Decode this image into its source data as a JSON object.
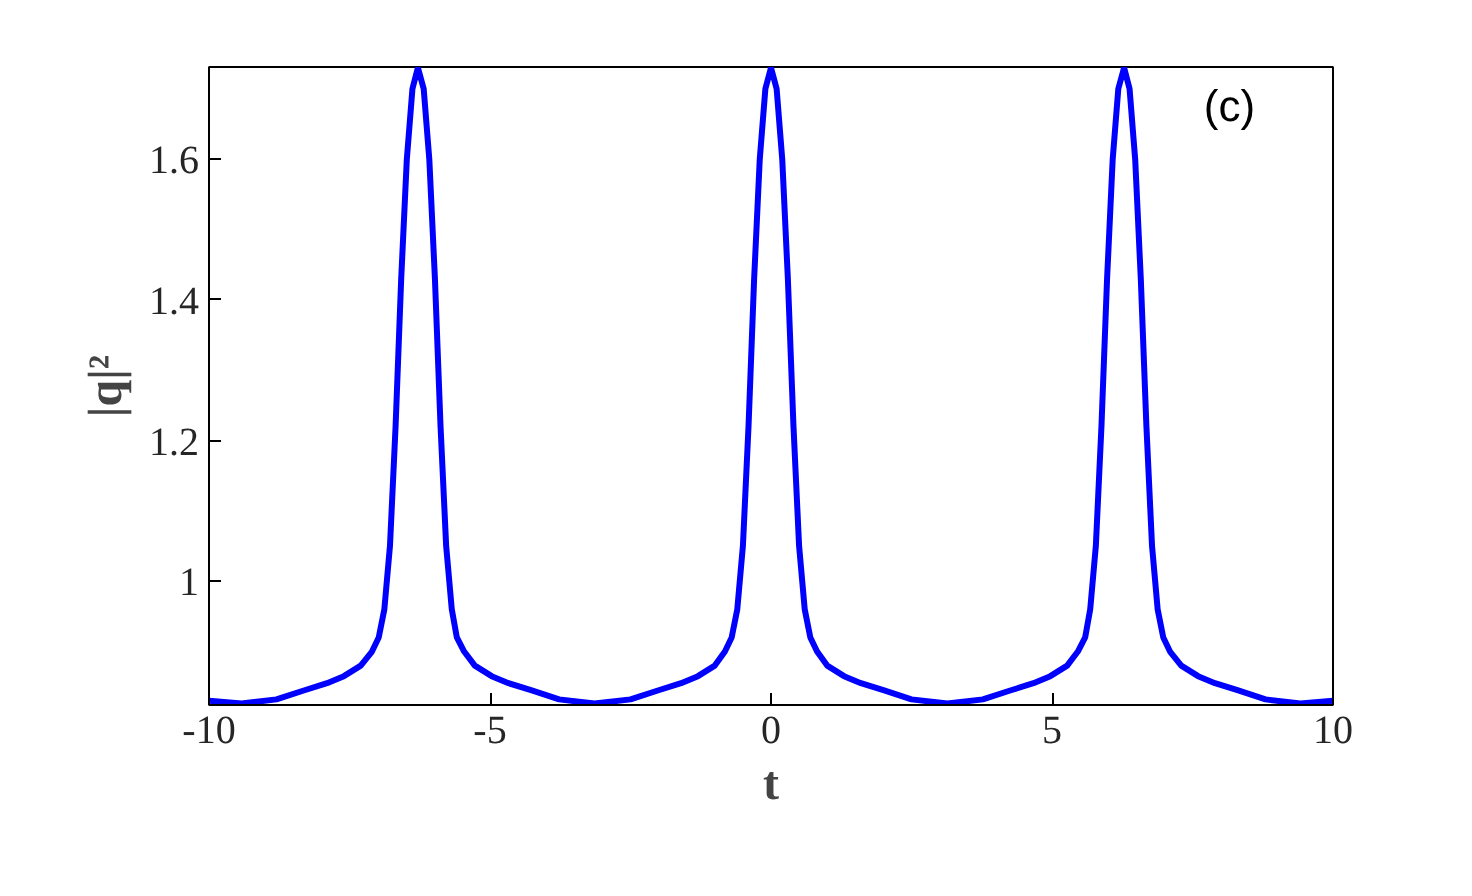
{
  "chart_data": {
    "type": "line",
    "xlabel": "t",
    "ylabel": "|q|²",
    "annotations": [
      "(c)"
    ],
    "x": [
      -10,
      -9.42,
      -8.8,
      -8.3,
      -7.9,
      -7.6,
      -7.3,
      -7.1,
      -6.98,
      -6.88,
      -6.78,
      -6.68,
      -6.58,
      -6.48,
      -6.38,
      -6.283,
      -6.18,
      -6.08,
      -5.98,
      -5.88,
      -5.78,
      -5.68,
      -5.59,
      -5.46,
      -5.27,
      -4.97,
      -4.67,
      -4.27,
      -3.77,
      -3.14,
      -2.5,
      -2.0,
      -1.6,
      -1.3,
      -1.0,
      -0.82,
      -0.7,
      -0.6,
      -0.5,
      -0.4,
      -0.3,
      -0.2,
      -0.1,
      0,
      0.1,
      0.2,
      0.3,
      0.4,
      0.5,
      0.6,
      0.7,
      0.82,
      1.0,
      1.3,
      1.6,
      2.0,
      2.5,
      3.14,
      3.77,
      4.27,
      4.67,
      4.97,
      5.27,
      5.46,
      5.59,
      5.68,
      5.78,
      5.88,
      5.98,
      6.08,
      6.18,
      6.283,
      6.38,
      6.48,
      6.58,
      6.68,
      6.78,
      6.88,
      6.98,
      7.1,
      7.3,
      7.6,
      7.9,
      8.3,
      8.8,
      9.42,
      10
    ],
    "series": [
      {
        "color": "#0000ff",
        "values": [
          0.83,
          0.826,
          0.832,
          0.845,
          0.855,
          0.865,
          0.88,
          0.9,
          0.92,
          0.96,
          1.05,
          1.22,
          1.43,
          1.6,
          1.7,
          1.73,
          1.7,
          1.6,
          1.43,
          1.22,
          1.05,
          0.96,
          0.92,
          0.9,
          0.88,
          0.865,
          0.855,
          0.845,
          0.832,
          0.826,
          0.832,
          0.845,
          0.855,
          0.865,
          0.88,
          0.9,
          0.92,
          0.96,
          1.05,
          1.22,
          1.43,
          1.6,
          1.7,
          1.73,
          1.7,
          1.6,
          1.43,
          1.22,
          1.05,
          0.96,
          0.92,
          0.9,
          0.88,
          0.865,
          0.855,
          0.845,
          0.832,
          0.826,
          0.832,
          0.845,
          0.855,
          0.865,
          0.88,
          0.9,
          0.92,
          0.96,
          1.05,
          1.22,
          1.43,
          1.6,
          1.7,
          1.73,
          1.7,
          1.6,
          1.43,
          1.22,
          1.05,
          0.96,
          0.92,
          0.9,
          0.88,
          0.865,
          0.855,
          0.845,
          0.832,
          0.826,
          0.83
        ]
      }
    ],
    "xlim": [
      -10,
      10
    ],
    "ylim": [
      0.824,
      1.731
    ],
    "xticks": [
      -10,
      -5,
      0,
      5,
      10
    ],
    "yticks": [
      1,
      1.2,
      1.4,
      1.6
    ],
    "grid": false,
    "marker": "none",
    "line_style": "solid"
  }
}
